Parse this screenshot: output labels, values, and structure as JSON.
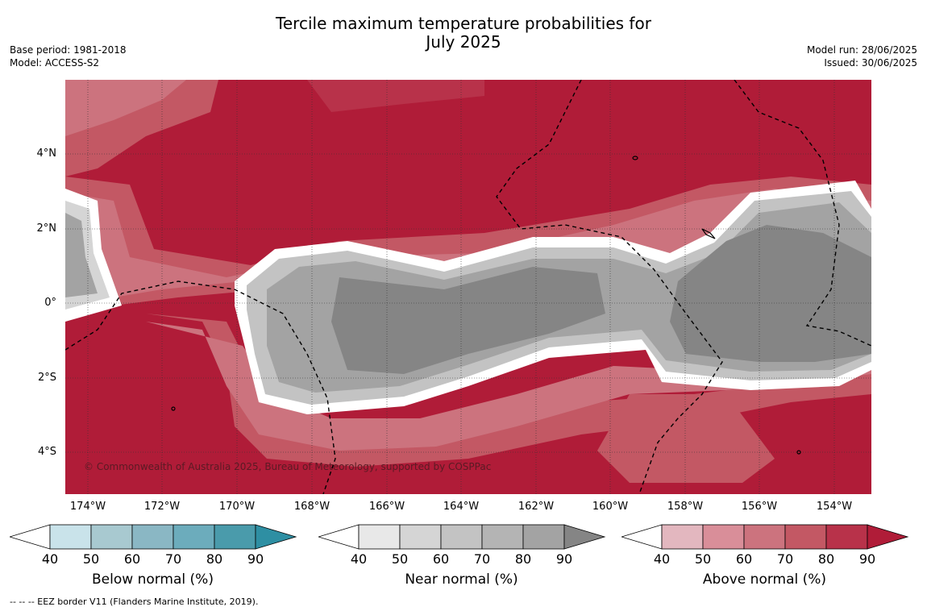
{
  "title_line1": "Tercile maximum temperature probabilities for",
  "title_line2": "July 2025",
  "base_period": "Base period: 1981-2018",
  "model": "Model: ACCESS-S2",
  "model_run": "Model run: 28/06/2025",
  "issued": "Issued: 30/06/2025",
  "lat_labels": [
    "4°N",
    "2°N",
    "0°",
    "2°S",
    "4°S"
  ],
  "lon_labels": [
    "174°W",
    "172°W",
    "170°W",
    "168°W",
    "166°W",
    "164°W",
    "162°W",
    "160°W",
    "158°W",
    "156°W",
    "154°W"
  ],
  "copyright": "© Commonwealth of Australia 2025, Bureau of Meteorology, supported by COSPPac",
  "colorbars": [
    {
      "label": "Below normal (%)",
      "ticks": [
        "40",
        "50",
        "60",
        "70",
        "80",
        "90"
      ],
      "colors": [
        "#c9e3ea",
        "#a8c9d0",
        "#8ab7c4",
        "#6cacbc",
        "#4a9bab",
        "#2e8fa3"
      ]
    },
    {
      "label": "Near normal (%)",
      "ticks": [
        "40",
        "50",
        "60",
        "70",
        "80",
        "90"
      ],
      "colors": [
        "#e8e8e8",
        "#d5d5d5",
        "#c3c3c3",
        "#b4b4b4",
        "#a3a3a3",
        "#858585"
      ]
    },
    {
      "label": "Above normal (%)",
      "ticks": [
        "40",
        "50",
        "60",
        "70",
        "80",
        "90"
      ],
      "colors": [
        "#e3b7bf",
        "#d98e99",
        "#cc737e",
        "#c35864",
        "#b8324a",
        "#b01c38"
      ]
    }
  ],
  "footnote": "-- -- -- EEZ border V11 (Flanders Marine Institute, 2019)."
}
